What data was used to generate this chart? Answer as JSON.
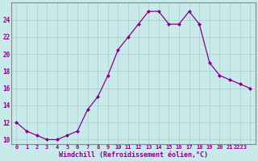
{
  "x": [
    0,
    1,
    2,
    3,
    4,
    5,
    6,
    7,
    8,
    9,
    10,
    11,
    12,
    13,
    14,
    15,
    16,
    17,
    18,
    19,
    20,
    21,
    22,
    23
  ],
  "y": [
    12,
    11,
    10.5,
    10,
    10,
    10.5,
    11,
    13.5,
    15,
    17.5,
    20.5,
    22,
    23.5,
    25,
    25,
    23.5,
    23.5,
    25,
    23.5,
    19,
    17.5,
    17,
    16.5,
    16
  ],
  "line_color": "#880088",
  "marker": "D",
  "marker_size": 2.5,
  "bg_color": "#c8eaea",
  "grid_color": "#aacccc",
  "xlabel": "Windchill (Refroidissement éolien,°C)",
  "xlabel_color": "#880088",
  "tick_color": "#880088",
  "label_color": "#880088",
  "ylim": [
    9.5,
    26.0
  ],
  "xlim": [
    -0.5,
    23.5
  ],
  "yticks": [
    10,
    12,
    14,
    16,
    18,
    20,
    22,
    24
  ],
  "xticks": [
    0,
    1,
    2,
    3,
    4,
    5,
    6,
    7,
    8,
    9,
    10,
    11,
    12,
    13,
    14,
    15,
    16,
    17,
    18,
    19,
    20,
    21,
    22,
    23
  ],
  "xtick_labels": [
    "0",
    "1",
    "2",
    "3",
    "4",
    "5",
    "6",
    "7",
    "8",
    "9",
    "10",
    "11",
    "12",
    "13",
    "14",
    "15",
    "16",
    "17",
    "18",
    "19",
    "20",
    "21",
    "2223",
    ""
  ],
  "spine_color": "#888888"
}
